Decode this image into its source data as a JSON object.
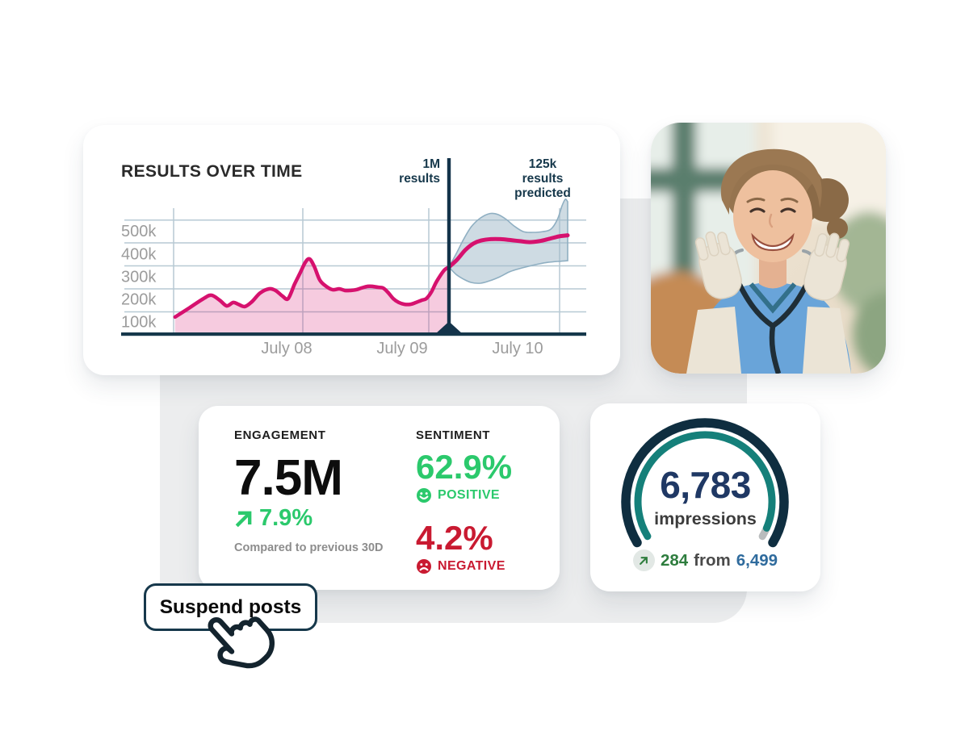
{
  "colors": {
    "accent_pink": "#d6116e",
    "pink_fill": "rgba(214,17,110,0.22)",
    "navy": "#16384b",
    "grid_blue": "#b7c9d4",
    "band_fill": "rgba(158,184,199,0.5)",
    "band_stroke": "#8fafc2",
    "green": "#2bc96c",
    "dark_green": "#2e7d3e",
    "red": "#c91a31",
    "steel_blue": "#2f6b9d",
    "gauge_teal": "#15807a",
    "gauge_navy": "#0f2e40",
    "gauge_gray": "#b9bcbd",
    "panel_gray": "#ecedee"
  },
  "results_card": {
    "title": "RESULTS OVER TIME",
    "y_ticks": [
      "500k",
      "400k",
      "300k",
      "200k",
      "100k"
    ],
    "x_ticks": [
      "July 08",
      "July 09",
      "July 10"
    ],
    "marker_annotation": [
      "1M",
      "results"
    ],
    "predicted_annotation": [
      "125k",
      "results",
      "predicted"
    ],
    "chart_data": {
      "type": "area",
      "title": "RESULTS OVER TIME",
      "x_axis": {
        "ticks": [
          "July 08",
          "July 09",
          "July 10"
        ],
        "unit": "date",
        "range_t": [
          0,
          100
        ]
      },
      "y_axis": {
        "ticks": [
          "500k",
          "400k",
          "300k",
          "200k",
          "100k"
        ],
        "unit": "results",
        "range_k": [
          0,
          620
        ],
        "grid": true
      },
      "annotations": [
        {
          "text": "1M results",
          "at_t": 70.5
        },
        {
          "text": "125k results predicted",
          "at_t": 88
        }
      ],
      "marker": {
        "t": 70.5
      },
      "series": [
        {
          "name": "actual results (k)",
          "style": "pink line with pink area fill",
          "points": [
            [
              11.6,
              120
            ],
            [
              14.8,
              162
            ],
            [
              17.7,
              201
            ],
            [
              19.4,
              216
            ],
            [
              21.2,
              194
            ],
            [
              22.7,
              169
            ],
            [
              24.1,
              184
            ],
            [
              25.2,
              176
            ],
            [
              26.6,
              166
            ],
            [
              28.1,
              187
            ],
            [
              29.9,
              226
            ],
            [
              31.8,
              244
            ],
            [
              33.2,
              237
            ],
            [
              34.7,
              212
            ],
            [
              35.9,
              201
            ],
            [
              37.3,
              265
            ],
            [
              38.5,
              315
            ],
            [
              39.6,
              361
            ],
            [
              40.5,
              376
            ],
            [
              41.5,
              344
            ],
            [
              42.7,
              283
            ],
            [
              44.1,
              255
            ],
            [
              45.5,
              240
            ],
            [
              46.9,
              244
            ],
            [
              48.1,
              237
            ],
            [
              49.3,
              237
            ],
            [
              50.5,
              240
            ],
            [
              51.7,
              248
            ],
            [
              53,
              255
            ],
            [
              54,
              255
            ],
            [
              55.2,
              251
            ],
            [
              56.3,
              248
            ],
            [
              57.3,
              230
            ],
            [
              58.5,
              201
            ],
            [
              59.7,
              184
            ],
            [
              60.9,
              176
            ],
            [
              62.2,
              176
            ],
            [
              63.4,
              184
            ],
            [
              64.6,
              194
            ],
            [
              65.6,
              201
            ],
            [
              66.7,
              230
            ],
            [
              67.7,
              272
            ],
            [
              68.8,
              308
            ],
            [
              69.6,
              329
            ],
            [
              70.5,
              340
            ]
          ]
        },
        {
          "name": "predicted results (k)",
          "style": "pink line",
          "points": [
            [
              70.5,
              340
            ],
            [
              72.2,
              372
            ],
            [
              74,
              415
            ],
            [
              75.7,
              443
            ],
            [
              77.4,
              457
            ],
            [
              79.5,
              463
            ],
            [
              81.6,
              463
            ],
            [
              83.7,
              459
            ],
            [
              85.8,
              454
            ],
            [
              87.8,
              450
            ],
            [
              89.9,
              454
            ],
            [
              92,
              464
            ],
            [
              94.1,
              475
            ],
            [
              96,
              480
            ]
          ]
        },
        {
          "name": "prediction band upper (k)",
          "style": "gray-blue band edge",
          "points": [
            [
              70.5,
              340
            ],
            [
              72,
              397
            ],
            [
              73.6,
              461
            ],
            [
              75.3,
              518
            ],
            [
              77.3,
              557
            ],
            [
              79.3,
              576
            ],
            [
              81.1,
              571
            ],
            [
              82.8,
              550
            ],
            [
              84.5,
              521
            ],
            [
              86.5,
              496
            ],
            [
              88.5,
              493
            ],
            [
              90.6,
              496
            ],
            [
              92.4,
              507
            ],
            [
              93.8,
              550
            ],
            [
              94.8,
              610
            ],
            [
              95.5,
              639
            ],
            [
              96,
              628
            ]
          ]
        },
        {
          "name": "prediction band lower (k)",
          "style": "gray-blue band edge",
          "points": [
            [
              70.5,
              340
            ],
            [
              72,
              308
            ],
            [
              73.6,
              287
            ],
            [
              75.3,
              272
            ],
            [
              77.3,
              269
            ],
            [
              79.3,
              280
            ],
            [
              81.4,
              297
            ],
            [
              83.5,
              319
            ],
            [
              85.6,
              333
            ],
            [
              87.7,
              344
            ],
            [
              89.8,
              354
            ],
            [
              91.8,
              361
            ],
            [
              93.9,
              365
            ],
            [
              96,
              368
            ]
          ]
        }
      ]
    }
  },
  "metrics_card": {
    "engagement": {
      "label": "ENGAGEMENT",
      "value": "7.5M",
      "delta": "7.9%",
      "footnote": "Compared to previous 30D"
    },
    "sentiment": {
      "label": "SENTIMENT",
      "positive_value": "62.9%",
      "positive_label": "POSITIVE",
      "negative_value": "4.2%",
      "negative_label": "NEGATIVE"
    }
  },
  "impressions_card": {
    "value": "6,783",
    "label": "impressions",
    "delta": "284",
    "from_word": "from",
    "previous_value": "6,499"
  },
  "suspend_button": {
    "label": "Suspend posts"
  }
}
